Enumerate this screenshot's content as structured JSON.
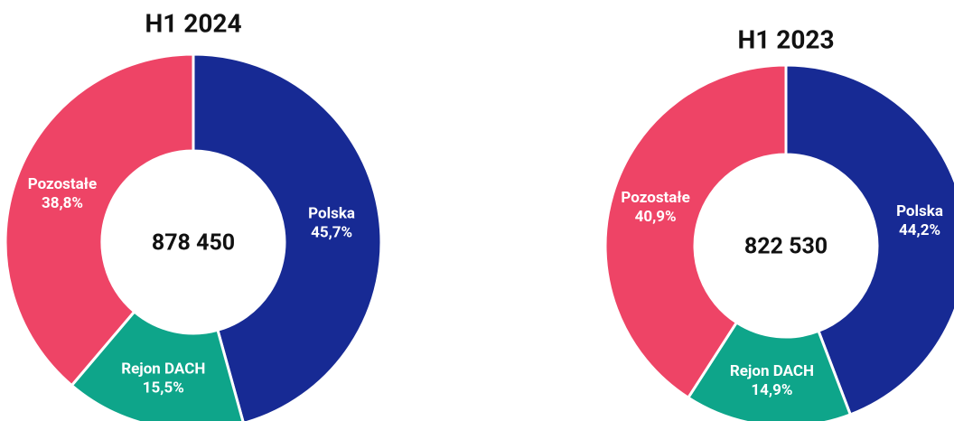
{
  "chart_data": [
    {
      "type": "donut",
      "title": "H1 2024",
      "center_label": "878 450",
      "categories": [
        "Polska",
        "Rejon DACH",
        "Pozostałe"
      ],
      "values": [
        45.7,
        15.5,
        38.8
      ],
      "value_labels": [
        "45,7%",
        "15,5%",
        "38,8%"
      ],
      "colors": [
        "#172a94",
        "#0ea58a",
        "#ee4466"
      ]
    },
    {
      "type": "donut",
      "title": "H1 2023",
      "center_label": "822 530",
      "categories": [
        "Polska",
        "Rejon DACH",
        "Pozostałe"
      ],
      "values": [
        44.2,
        14.9,
        40.9
      ],
      "value_labels": [
        "44,2%",
        "14,9%",
        "40,9%"
      ],
      "colors": [
        "#172a94",
        "#0ea58a",
        "#ee4466"
      ]
    }
  ]
}
